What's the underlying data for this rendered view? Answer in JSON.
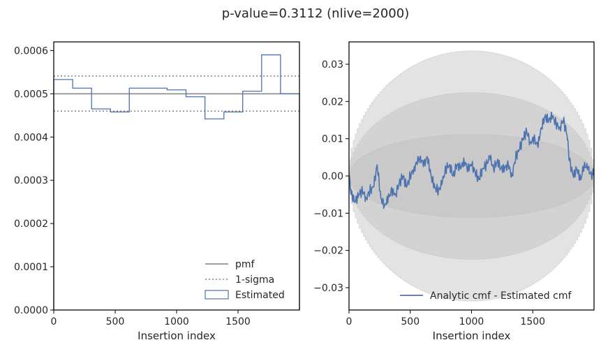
{
  "figure_title": "p-value=0.3112 (nlive=2000)",
  "chart_data": [
    {
      "type": "step",
      "xlabel": "Insertion index",
      "ylabel": "",
      "xlim": [
        0,
        2000
      ],
      "ylim": [
        0,
        0.00062
      ],
      "xticks": [
        0,
        500,
        1000,
        1500
      ],
      "xtick_labels": [
        "0",
        "500",
        "1000",
        "1500"
      ],
      "yticks": [
        0,
        0.0001,
        0.0002,
        0.0003,
        0.0004,
        0.0005,
        0.0006
      ],
      "ytick_labels": [
        "0.0000",
        "0.0001",
        "0.0002",
        "0.0003",
        "0.0004",
        "0.0005",
        "0.0006"
      ],
      "pmf": 0.0005,
      "sigma_upper": 0.000541,
      "sigma_lower": 0.00046,
      "hist": {
        "bin_edges": [
          0,
          154,
          308,
          462,
          615,
          769,
          923,
          1077,
          1231,
          1385,
          1538,
          1692,
          1846,
          2000
        ],
        "values": [
          0.000533,
          0.000513,
          0.000465,
          0.000458,
          0.000513,
          0.000513,
          0.000509,
          0.000493,
          0.000442,
          0.000458,
          0.000506,
          0.00059,
          0.0005
        ]
      },
      "legend": {
        "position": "lower right",
        "entries": [
          {
            "label": "pmf",
            "style": "solid",
            "color": "#808080"
          },
          {
            "label": "1-sigma",
            "style": "dotted",
            "color": "#808080"
          },
          {
            "label": "Estimated",
            "style": "patch",
            "color": "#4c72b0"
          }
        ]
      }
    },
    {
      "type": "line",
      "xlabel": "Insertion index",
      "ylabel": "",
      "xlim": [
        0,
        2000
      ],
      "ylim": [
        -0.036,
        0.036
      ],
      "xticks": [
        0,
        500,
        1000,
        1500
      ],
      "xtick_labels": [
        "0",
        "500",
        "1000",
        "1500"
      ],
      "yticks": [
        -0.03,
        -0.02,
        -0.01,
        0.0,
        0.01,
        0.02,
        0.03
      ],
      "ytick_labels": [
        "−0.03",
        "−0.02",
        "−0.01",
        "0.00",
        "0.01",
        "0.02",
        "0.03"
      ],
      "bands": [
        {
          "sigma": 1,
          "peak": 0.0112
        },
        {
          "sigma": 2,
          "peak": 0.0224
        },
        {
          "sigma": 3,
          "peak": 0.0336
        }
      ],
      "series": [
        {
          "name": "Analytic cmf - Estimated cmf",
          "color": "#4c72b0",
          "x": [
            0,
            20,
            50,
            80,
            110,
            140,
            170,
            200,
            230,
            260,
            290,
            320,
            350,
            380,
            410,
            440,
            470,
            500,
            530,
            560,
            580,
            610,
            640,
            670,
            700,
            730,
            760,
            790,
            820,
            850,
            880,
            910,
            940,
            970,
            1000,
            1030,
            1060,
            1090,
            1120,
            1150,
            1180,
            1210,
            1240,
            1270,
            1300,
            1330,
            1360,
            1390,
            1420,
            1450,
            1480,
            1510,
            1540,
            1570,
            1600,
            1630,
            1660,
            1690,
            1720,
            1750,
            1780,
            1800,
            1830,
            1860,
            1890,
            1920,
            1950,
            1980,
            2000
          ],
          "y": [
            0.0,
            -0.005,
            -0.007,
            -0.005,
            -0.004,
            -0.006,
            -0.004,
            -0.003,
            0.003,
            -0.006,
            -0.008,
            -0.006,
            -0.004,
            -0.005,
            -0.002,
            0.0,
            -0.003,
            0.0,
            0.002,
            0.004,
            0.005,
            0.003,
            0.005,
            0.0,
            -0.003,
            -0.004,
            -0.002,
            0.002,
            0.003,
            0.0,
            0.003,
            0.002,
            0.004,
            0.002,
            0.003,
            0.001,
            -0.001,
            0.002,
            0.003,
            0.005,
            0.002,
            0.004,
            0.002,
            0.002,
            0.003,
            0.0,
            0.005,
            0.007,
            0.01,
            0.012,
            0.009,
            0.01,
            0.008,
            0.013,
            0.016,
            0.015,
            0.016,
            0.014,
            0.013,
            0.015,
            0.011,
            0.004,
            0.0,
            0.002,
            -0.001,
            0.003,
            0.002,
            0.0,
            0.001
          ]
        }
      ],
      "legend": {
        "position": "lower right",
        "entries": [
          {
            "label": "Analytic cmf - Estimated cmf",
            "style": "solid",
            "color": "#4c72b0"
          }
        ]
      }
    }
  ]
}
